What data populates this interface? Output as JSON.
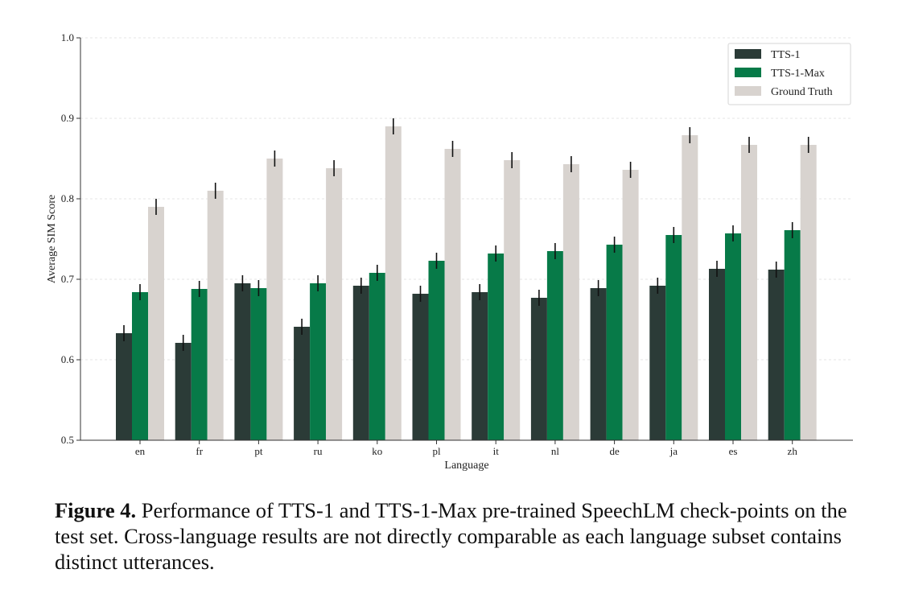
{
  "chart_data": {
    "type": "bar",
    "categories": [
      "en",
      "fr",
      "pt",
      "ru",
      "ko",
      "pl",
      "it",
      "nl",
      "de",
      "ja",
      "es",
      "zh"
    ],
    "series": [
      {
        "name": "TTS-1",
        "color": "#2b3b37",
        "values": [
          0.633,
          0.621,
          0.695,
          0.641,
          0.692,
          0.682,
          0.684,
          0.677,
          0.689,
          0.692,
          0.713,
          0.712
        ],
        "errors": [
          0.01,
          0.01,
          0.01,
          0.01,
          0.01,
          0.01,
          0.01,
          0.01,
          0.01,
          0.01,
          0.01,
          0.01
        ]
      },
      {
        "name": "TTS-1-Max",
        "color": "#077a48",
        "values": [
          0.684,
          0.688,
          0.689,
          0.695,
          0.708,
          0.723,
          0.732,
          0.735,
          0.743,
          0.755,
          0.757,
          0.761
        ],
        "errors": [
          0.01,
          0.01,
          0.01,
          0.01,
          0.01,
          0.01,
          0.01,
          0.01,
          0.01,
          0.01,
          0.01,
          0.01
        ]
      },
      {
        "name": "Ground Truth",
        "color": "#d8d3cf",
        "values": [
          0.79,
          0.81,
          0.85,
          0.838,
          0.89,
          0.862,
          0.848,
          0.843,
          0.836,
          0.879,
          0.867,
          0.867
        ],
        "errors": [
          0.01,
          0.01,
          0.01,
          0.01,
          0.01,
          0.01,
          0.01,
          0.01,
          0.01,
          0.01,
          0.01,
          0.01
        ]
      }
    ],
    "xlabel": "Language",
    "ylabel": "Average SIM Score",
    "ylim": [
      0.5,
      1.0
    ],
    "yticks": [
      "0.5",
      "0.6",
      "0.7",
      "0.8",
      "0.9",
      "1.0"
    ],
    "grid": "horizontal dashed",
    "legend_position": "top-right"
  },
  "caption": {
    "label": "Figure 4.",
    "text": " Performance of TTS-1 and TTS-1-Max pre-trained SpeechLM check-points on the test set. Cross-language results are not directly comparable as each language subset contains distinct utterances."
  }
}
